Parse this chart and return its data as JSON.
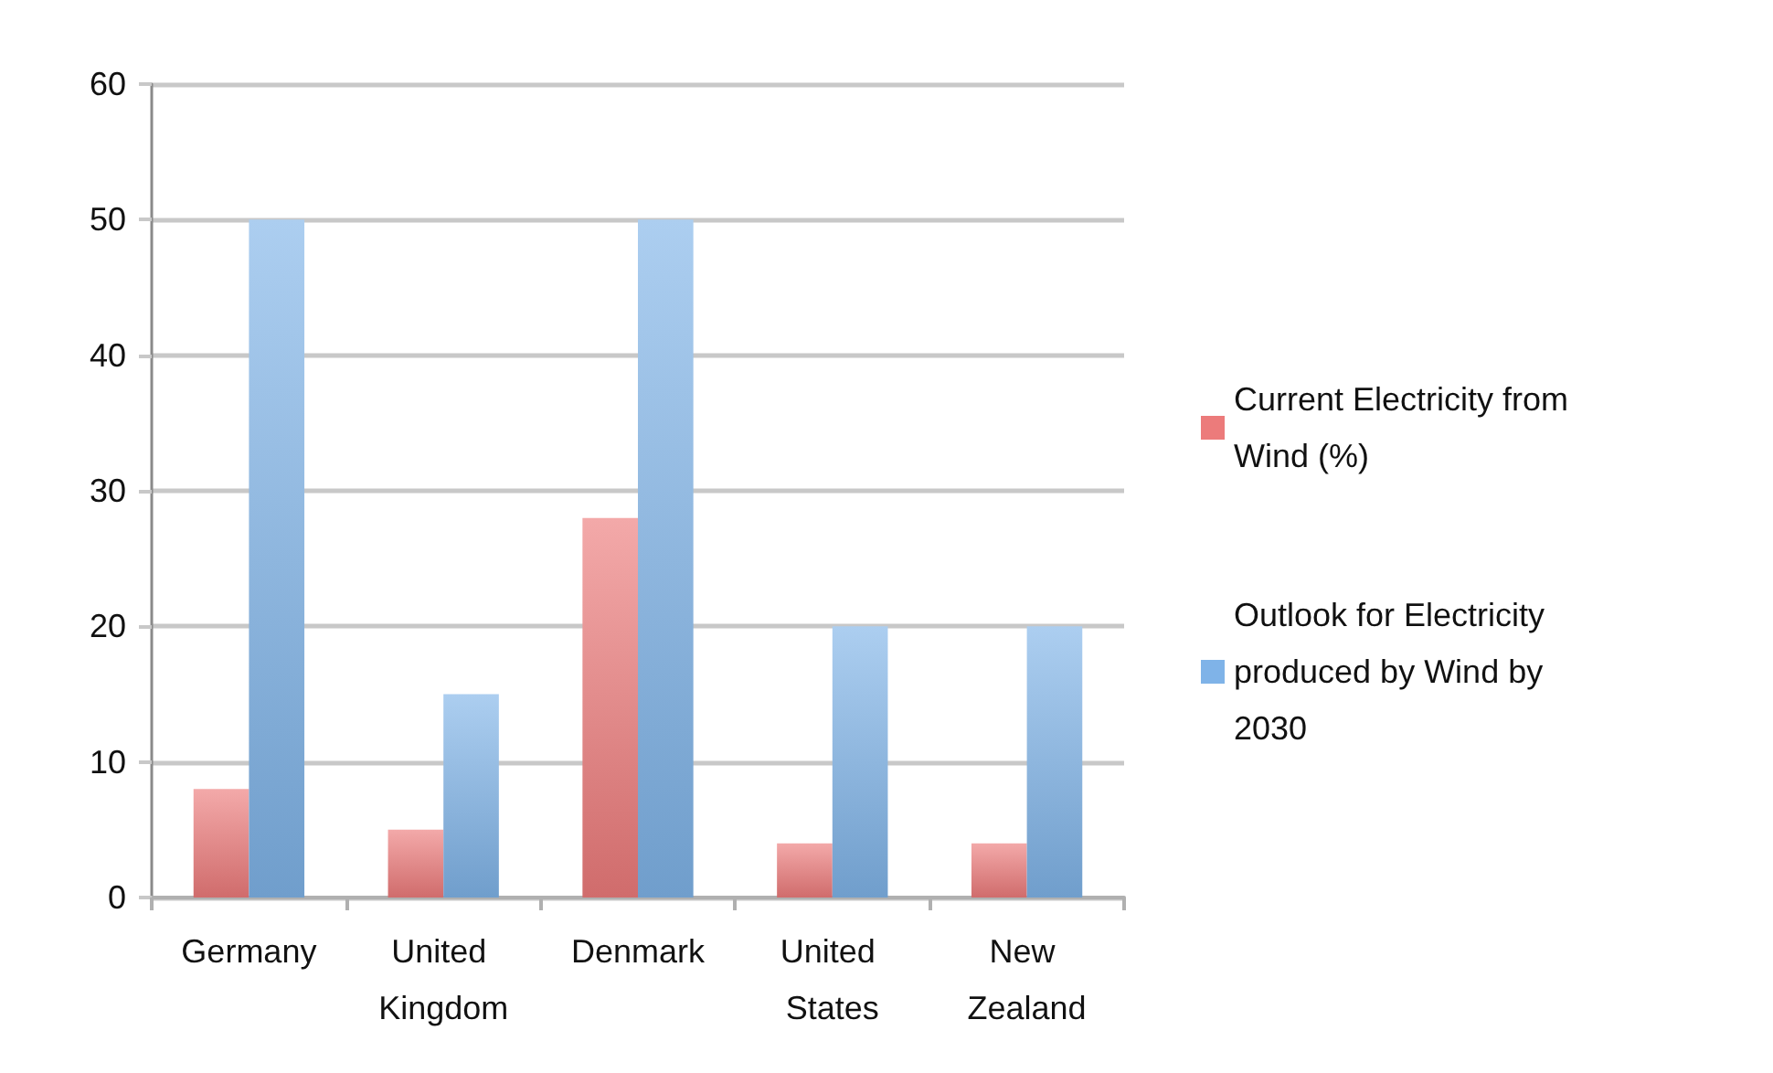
{
  "chart_data": {
    "type": "bar",
    "categories": [
      "Germany",
      "United Kingdom",
      "Denmark",
      "United States",
      "New Zealand"
    ],
    "series": [
      {
        "name": "Current Electricity from Wind (%)",
        "color": "#ec7b7b",
        "values": [
          8,
          5,
          28,
          4,
          4
        ]
      },
      {
        "name": "Outlook for Electricity produced by Wind by 2030",
        "color": "#7fb3e8",
        "values": [
          50,
          15,
          50,
          20,
          20
        ]
      }
    ],
    "ylim": [
      0,
      60
    ],
    "yticks": [
      0,
      10,
      20,
      30,
      40,
      50,
      60
    ],
    "grid": "y",
    "legend": "right"
  }
}
